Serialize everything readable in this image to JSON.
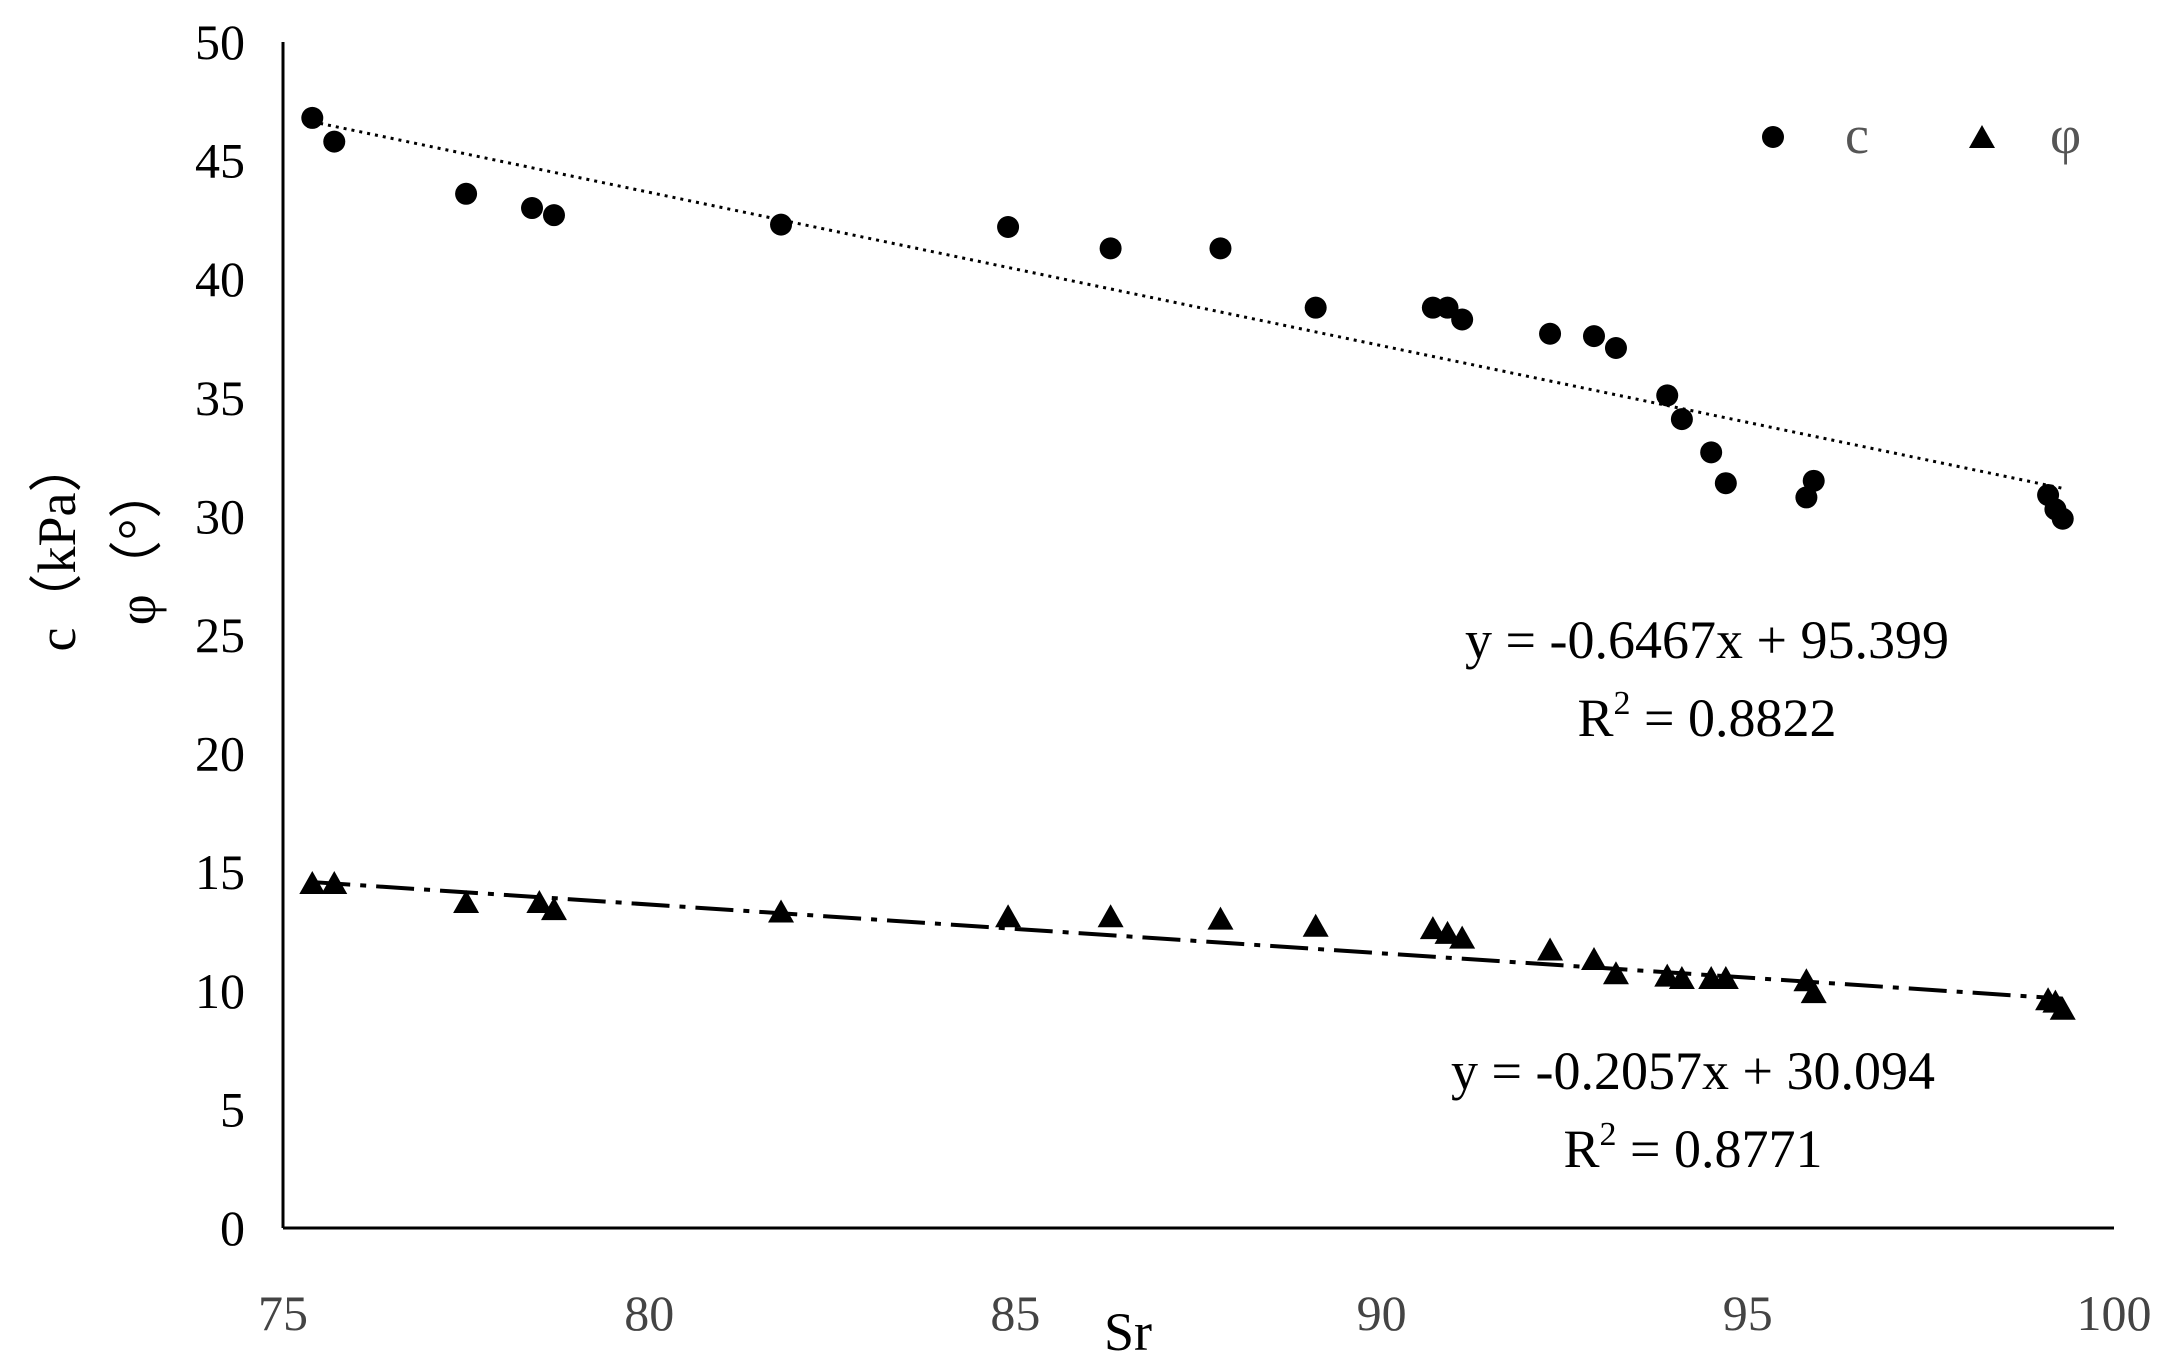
{
  "chart_data": {
    "type": "scatter",
    "xlabel": "Sr",
    "ylabel_line1": "c（kPa）",
    "ylabel_line2": "φ（°）",
    "xlim": [
      75,
      100
    ],
    "ylim": [
      0,
      50
    ],
    "x_ticks": [
      75,
      80,
      85,
      90,
      95,
      100
    ],
    "y_ticks": [
      0,
      5,
      10,
      15,
      20,
      25,
      30,
      35,
      40,
      45,
      50
    ],
    "grid": false,
    "legend_position": "top-right",
    "series": [
      {
        "name": "c",
        "marker": "circle",
        "color": "#000000",
        "x": [
          75.4,
          75.7,
          77.5,
          78.4,
          78.7,
          81.8,
          84.9,
          86.3,
          87.8,
          89.1,
          90.7,
          90.9,
          91.1,
          92.3,
          92.9,
          93.2,
          93.9,
          94.1,
          94.5,
          94.7,
          95.8,
          95.9,
          99.1,
          99.2,
          99.3
        ],
        "y": [
          46.8,
          45.8,
          43.6,
          43.0,
          42.7,
          42.3,
          42.2,
          41.3,
          41.3,
          38.8,
          38.8,
          38.8,
          38.3,
          37.7,
          37.6,
          37.1,
          35.1,
          34.1,
          32.7,
          31.4,
          30.8,
          31.5,
          30.9,
          30.3,
          29.9
        ],
        "trendline": {
          "slope": -0.6467,
          "intercept": 95.399,
          "style": "dotted",
          "equation": "y = -0.6467x + 95.399",
          "r2_prefix": "R",
          "r2_sup": "2",
          "r2_value": " = 0.8822"
        }
      },
      {
        "name": "φ",
        "marker": "triangle",
        "color": "#000000",
        "x": [
          75.4,
          75.7,
          77.5,
          78.5,
          78.7,
          81.8,
          84.9,
          86.3,
          87.8,
          89.1,
          90.7,
          90.9,
          91.1,
          92.3,
          92.9,
          93.2,
          93.9,
          94.1,
          94.5,
          94.7,
          95.8,
          95.9,
          99.1,
          99.2,
          99.3
        ],
        "y": [
          14.5,
          14.5,
          13.7,
          13.7,
          13.4,
          13.3,
          13.1,
          13.1,
          13.0,
          12.7,
          12.6,
          12.4,
          12.2,
          11.7,
          11.3,
          10.7,
          10.6,
          10.5,
          10.5,
          10.5,
          10.4,
          9.9,
          9.6,
          9.5,
          9.2
        ],
        "trendline": {
          "slope": -0.2057,
          "intercept": 30.094,
          "style": "dash-dot",
          "equation": "y = -0.2057x + 30.094",
          "r2_prefix": "R",
          "r2_sup": "2",
          "r2_value": " = 0.8771"
        }
      }
    ]
  }
}
